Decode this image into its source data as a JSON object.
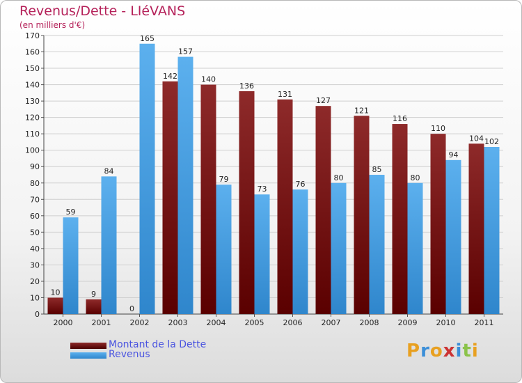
{
  "header": {
    "title": "Revenus/Dette - LIéVANS",
    "subtitle": "(en milliers d'€)"
  },
  "legend": {
    "items": [
      {
        "label": "Montant de la Dette",
        "color": "#6e1010"
      },
      {
        "label": "Revenus",
        "color": "#4aa3e6"
      }
    ]
  },
  "logo": {
    "text": "Proxiti",
    "colors": [
      "#e8a020",
      "#3c8fd8",
      "#e8a020",
      "#cc3333",
      "#3c8fd8",
      "#8bc34a",
      "#e8a020"
    ]
  },
  "chart_data": {
    "type": "bar",
    "categories": [
      "2000",
      "2001",
      "2002",
      "2003",
      "2004",
      "2005",
      "2006",
      "2007",
      "2008",
      "2009",
      "2010",
      "2011"
    ],
    "series": [
      {
        "name": "Montant de la Dette",
        "color": "#8b1a1a",
        "values": [
          10,
          9,
          0,
          142,
          140,
          136,
          131,
          127,
          121,
          116,
          110,
          104
        ]
      },
      {
        "name": "Revenus",
        "color": "#4aa3e6",
        "values": [
          59,
          84,
          165,
          157,
          79,
          73,
          76,
          80,
          85,
          80,
          94,
          102
        ]
      }
    ],
    "ylim": [
      0,
      170
    ],
    "yticks": [
      0,
      10,
      20,
      30,
      40,
      50,
      60,
      70,
      80,
      90,
      100,
      110,
      120,
      130,
      140,
      150,
      160,
      170
    ],
    "grid": true
  }
}
